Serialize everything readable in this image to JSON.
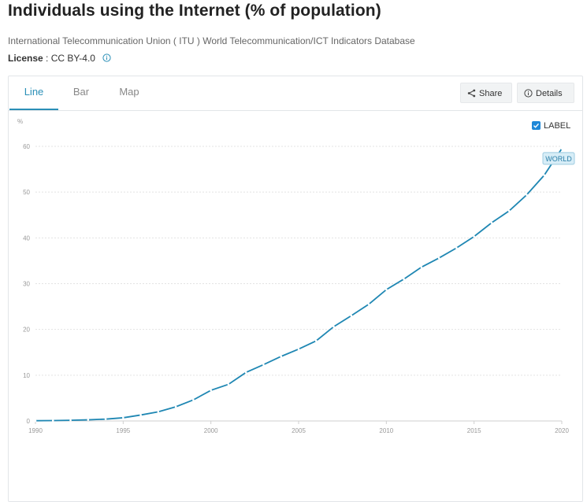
{
  "header": {
    "title": "Individuals using the Internet (% of population)",
    "source": "International Telecommunication Union ( ITU ) World Telecommunication/ICT Indicators Database",
    "license_label": "License",
    "license_value": " : CC BY-4.0"
  },
  "tabs": [
    {
      "label": "Line",
      "active": true
    },
    {
      "label": "Bar",
      "active": false
    },
    {
      "label": "Map",
      "active": false
    }
  ],
  "toolbar": {
    "share_label": "Share",
    "details_label": "Details"
  },
  "label_toggle": {
    "label": "LABEL",
    "checked": true
  },
  "colors": {
    "accent": "#2a8fb7",
    "line": "#1f87b3",
    "checkbox": "#1e88d8",
    "tag_bg": "#d7edf7"
  },
  "chart_data": {
    "type": "line",
    "title": "Individuals using the Internet (% of population)",
    "ylabel": "%",
    "xlabel": "",
    "x": [
      1990,
      1991,
      1992,
      1993,
      1994,
      1995,
      1996,
      1997,
      1998,
      1999,
      2000,
      2001,
      2002,
      2003,
      2004,
      2005,
      2006,
      2007,
      2008,
      2009,
      2010,
      2011,
      2012,
      2013,
      2014,
      2015,
      2016,
      2017,
      2018,
      2019,
      2020
    ],
    "series": [
      {
        "name": "WORLD",
        "values": [
          0.05,
          0.08,
          0.15,
          0.25,
          0.4,
          0.7,
          1.3,
          2.0,
          3.1,
          4.6,
          6.7,
          8.0,
          10.6,
          12.3,
          14.1,
          15.7,
          17.5,
          20.6,
          23.0,
          25.5,
          28.7,
          31.0,
          33.6,
          35.6,
          37.8,
          40.3,
          43.3,
          45.9,
          49.4,
          53.7,
          59.5
        ]
      }
    ],
    "series_label": "WORLD",
    "xlim": [
      1990,
      2020
    ],
    "ylim": [
      0,
      60
    ],
    "xticks": [
      "1990",
      "1995",
      "2000",
      "2005",
      "2010",
      "2015",
      "2020"
    ],
    "yticks": [
      "0",
      "10",
      "20",
      "30",
      "40",
      "50",
      "60"
    ],
    "grid": true
  }
}
